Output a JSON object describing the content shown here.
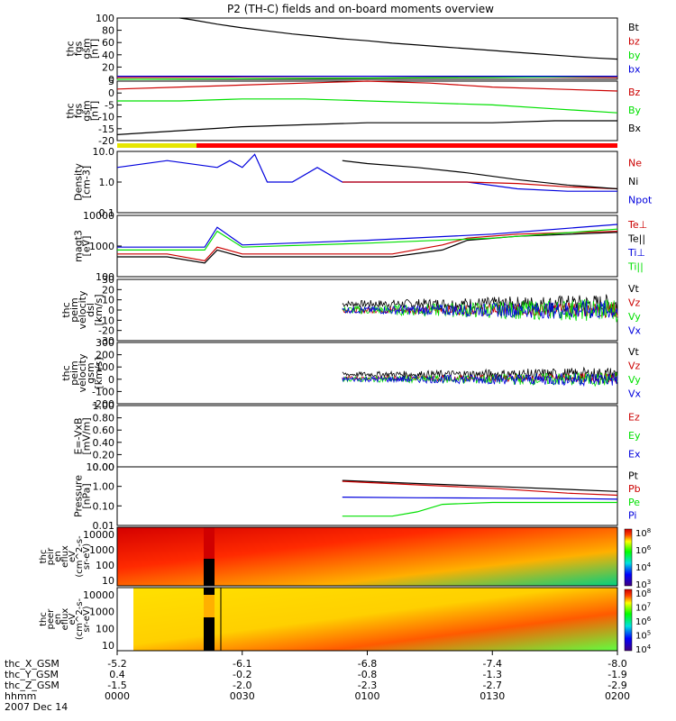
{
  "title": "P2 (TH-C) fields and on-board moments overview",
  "colors": {
    "black": "#000000",
    "red": "#cc0000",
    "green": "#00e000",
    "blue": "#0000dd",
    "yellow": "#e6e600",
    "bar_red": "#ff0000"
  },
  "chart_data": {
    "type": "line",
    "x": {
      "label": "hhmm",
      "ticks": [
        "0000",
        "0030",
        "0100",
        "0130",
        "0200"
      ],
      "range_hhmm": [
        "0000",
        "0200"
      ],
      "date": "2007 Dec 14"
    },
    "orbit_rows": [
      {
        "label": "thc_X_GSM",
        "values": [
          "-5.2",
          "-6.1",
          "-6.8",
          "-7.4",
          "-8.0"
        ]
      },
      {
        "label": "thc_Y_GSM",
        "values": [
          "0.4",
          "-0.2",
          "-0.8",
          "-1.3",
          "-1.9"
        ]
      },
      {
        "label": "thc_Z_GSM",
        "values": [
          "-1.5",
          "-2.0",
          "-2.3",
          "-2.7",
          "-2.9"
        ]
      }
    ],
    "panels": [
      {
        "id": "fgs_gsm_mag",
        "ylabel": [
          "thc",
          "fgs",
          "gsm",
          "[nT]"
        ],
        "ylim": [
          0,
          100
        ],
        "ticks": [
          "100",
          "80",
          "60",
          "40",
          "20",
          "0"
        ],
        "legend": [
          {
            "name": "Bt",
            "color": "#000000"
          },
          {
            "name": "bz",
            "color": "#cc0000"
          },
          {
            "name": "by",
            "color": "#00e000"
          },
          {
            "name": "bx",
            "color": "#0000dd"
          }
        ],
        "series": [
          {
            "name": "Bt",
            "color": "#000000",
            "x": [
              0.25,
              0.3,
              0.4,
              0.5,
              0.6,
              0.7,
              0.8,
              0.9,
              1.0,
              1.1,
              1.2,
              1.3,
              1.4,
              1.5,
              1.6,
              1.7,
              1.8,
              1.9,
              2.0
            ],
            "y": [
              100,
              97,
              90,
              84,
              79,
              74,
              70,
              66,
              63,
              59,
              56,
              53,
              50,
              47,
              44,
              41,
              38,
              35,
              33
            ]
          },
          {
            "name": "bz",
            "color": "#cc0000",
            "x": [
              0,
              0.5,
              1.0,
              1.5,
              2.0
            ],
            "y": [
              3,
              4,
              5,
              4,
              3
            ]
          },
          {
            "name": "by",
            "color": "#00e000",
            "x": [
              0,
              0.5,
              1.0,
              1.5,
              2.0
            ],
            "y": [
              0,
              1,
              2,
              3,
              5
            ]
          },
          {
            "name": "bx",
            "color": "#0000dd",
            "x": [
              0,
              0.5,
              1.0,
              1.5,
              2.0
            ],
            "y": [
              5,
              5,
              5,
              5,
              5
            ]
          }
        ]
      },
      {
        "id": "fgs_gsm_components",
        "ylabel": [
          "thc",
          "fgs",
          "gsm",
          "[nT]"
        ],
        "ylim": [
          -25,
          5
        ],
        "ticks": [
          "5",
          "0",
          "-5",
          "-10",
          "-15",
          "-20"
        ],
        "legend": [
          {
            "name": "Bz",
            "color": "#cc0000"
          },
          {
            "name": "By",
            "color": "#00e000"
          },
          {
            "name": "Bx",
            "color": "#000000"
          }
        ],
        "series": [
          {
            "name": "Bz",
            "color": "#cc0000",
            "x": [
              0,
              0.25,
              0.5,
              0.75,
              1.0,
              1.25,
              1.5,
              1.75,
              2.0
            ],
            "y": [
              1,
              2,
              3,
              4,
              5,
              4,
              2,
              1,
              0
            ]
          },
          {
            "name": "By",
            "color": "#00e000",
            "x": [
              0,
              0.25,
              0.5,
              0.75,
              1.0,
              1.25,
              1.5,
              1.75,
              2.0
            ],
            "y": [
              -5,
              -5,
              -4,
              -4,
              -5,
              -6,
              -7,
              -9,
              -11
            ]
          },
          {
            "name": "Bx",
            "color": "#000000",
            "x": [
              0,
              0.25,
              0.5,
              0.75,
              1.0,
              1.25,
              1.5,
              1.75,
              2.0
            ],
            "y": [
              -22,
              -20,
              -18,
              -17,
              -16,
              -16,
              -16,
              -15,
              -15
            ]
          }
        ]
      },
      {
        "id": "density",
        "ylabel": [
          "Density",
          "[cm-3]"
        ],
        "log": true,
        "ylim": [
          0.1,
          10
        ],
        "ticks": [
          "10.0",
          "1.0",
          "0.1"
        ],
        "legend": [
          {
            "name": "Ne",
            "color": "#cc0000"
          },
          {
            "name": "Ni",
            "color": "#000000"
          },
          {
            "name": "Npot",
            "color": "#0000dd"
          }
        ],
        "series": [
          {
            "name": "Npot",
            "color": "#0000dd",
            "x": [
              0,
              0.2,
              0.4,
              0.45,
              0.5,
              0.55,
              0.6,
              0.7,
              0.8,
              0.9,
              1.0,
              1.2,
              1.4,
              1.6,
              1.8,
              2.0
            ],
            "y": [
              3,
              5,
              3,
              5,
              3,
              8,
              1,
              1,
              3,
              1,
              1,
              1,
              1,
              0.6,
              0.5,
              0.5
            ]
          },
          {
            "name": "Ne",
            "color": "#cc0000",
            "x": [
              0.9,
              1.0,
              1.2,
              1.4,
              1.6,
              1.8,
              2.0
            ],
            "y": [
              1,
              1,
              1,
              1,
              0.9,
              0.7,
              0.6
            ]
          },
          {
            "name": "Ni",
            "color": "#000000",
            "x": [
              0.9,
              1.0,
              1.2,
              1.4,
              1.6,
              1.8,
              2.0
            ],
            "y": [
              5,
              4,
              3,
              2,
              1.2,
              0.8,
              0.6
            ]
          }
        ]
      },
      {
        "id": "temperature",
        "ylabel": [
          "magt3",
          "[eV]"
        ],
        "log": true,
        "ylim": [
          20,
          10000
        ],
        "ticks": [
          "10000",
          "1000",
          "100"
        ],
        "legend": [
          {
            "name": "Te⊥",
            "color": "#cc0000"
          },
          {
            "name": "Te||",
            "color": "#000000"
          },
          {
            "name": "Ti⊥",
            "color": "#0000dd"
          },
          {
            "name": "Ti||",
            "color": "#00e000"
          }
        ],
        "series": [
          {
            "name": "Te⊥",
            "color": "#cc0000",
            "x": [
              0,
              0.2,
              0.35,
              0.4,
              0.5,
              0.9,
              1.1,
              1.3,
              1.4,
              1.6,
              2.0
            ],
            "y": [
              200,
              200,
              100,
              400,
              200,
              200,
              200,
              500,
              1000,
              1500,
              2000
            ]
          },
          {
            "name": "Te||",
            "color": "#000000",
            "x": [
              0,
              0.2,
              0.35,
              0.4,
              0.5,
              0.9,
              1.1,
              1.3,
              1.4,
              1.6,
              2.0
            ],
            "y": [
              150,
              150,
              80,
              300,
              150,
              150,
              150,
              300,
              800,
              1200,
              1800
            ]
          },
          {
            "name": "Ti⊥",
            "color": "#0000dd",
            "x": [
              0,
              0.35,
              0.4,
              0.5,
              1.0,
              1.5,
              2.0
            ],
            "y": [
              400,
              400,
              3000,
              500,
              800,
              1500,
              4000
            ]
          },
          {
            "name": "Ti||",
            "color": "#00e000",
            "x": [
              0,
              0.35,
              0.4,
              0.5,
              1.0,
              1.5,
              2.0
            ],
            "y": [
              300,
              300,
              2000,
              400,
              600,
              1000,
              2500
            ]
          }
        ]
      },
      {
        "id": "velocity_dsl",
        "ylabel": [
          "thc",
          "peim",
          "velocity",
          "dsl",
          "[km/s]"
        ],
        "ylim": [
          -30,
          30
        ],
        "ticks": [
          "30",
          "20",
          "10",
          "0",
          "-10",
          "-20",
          "-30"
        ],
        "legend": [
          {
            "name": "Vt",
            "color": "#000000"
          },
          {
            "name": "Vz",
            "color": "#cc0000"
          },
          {
            "name": "Vy",
            "color": "#00e000"
          },
          {
            "name": "Vx",
            "color": "#0000dd"
          }
        ],
        "noise_start": 0.9,
        "series": [
          {
            "name": "Vt",
            "color": "#000000",
            "level": 6,
            "spread": 10
          },
          {
            "name": "Vz",
            "color": "#cc0000",
            "level": 0,
            "spread": 8
          },
          {
            "name": "Vy",
            "color": "#00e000",
            "level": 0,
            "spread": 12
          },
          {
            "name": "Vx",
            "color": "#0000dd",
            "level": 0,
            "spread": 10
          }
        ]
      },
      {
        "id": "velocity_gsm",
        "ylabel": [
          "thc",
          "peim",
          "velocity",
          "gsm",
          "[km/s]"
        ],
        "ylim": [
          -200,
          300
        ],
        "ticks": [
          "300",
          "200",
          "100",
          "0",
          "-100",
          "-200"
        ],
        "legend": [
          {
            "name": "Vt",
            "color": "#000000"
          },
          {
            "name": "Vz",
            "color": "#cc0000"
          },
          {
            "name": "Vy",
            "color": "#00e000"
          },
          {
            "name": "Vx",
            "color": "#0000dd"
          }
        ],
        "noise_start": 0.9,
        "series": [
          {
            "name": "Vt",
            "color": "#000000",
            "level": 40,
            "spread": 60
          },
          {
            "name": "Vz",
            "color": "#cc0000",
            "level": 10,
            "spread": 40
          },
          {
            "name": "Vy",
            "color": "#00e000",
            "level": 0,
            "spread": 60
          },
          {
            "name": "Vx",
            "color": "#0000dd",
            "level": 0,
            "spread": 60
          }
        ]
      },
      {
        "id": "e_field",
        "ylabel": [
          "E=-VxB",
          "[mV/m]"
        ],
        "ylim": [
          0,
          1
        ],
        "ticks": [
          "1.00",
          "0.80",
          "0.60",
          "0.40",
          "0.20",
          "0.00"
        ],
        "legend": [
          {
            "name": "Ez",
            "color": "#cc0000"
          },
          {
            "name": "Ey",
            "color": "#00e000"
          },
          {
            "name": "Ex",
            "color": "#0000dd"
          }
        ],
        "series": []
      },
      {
        "id": "pressure",
        "ylabel": [
          "Pressure",
          "[nPa]"
        ],
        "log": true,
        "ylim": [
          0.01,
          10
        ],
        "ticks": [
          "10.00",
          "1.00",
          "0.10",
          "0.01"
        ],
        "legend": [
          {
            "name": "Pt",
            "color": "#000000"
          },
          {
            "name": "Pb",
            "color": "#cc0000"
          },
          {
            "name": "Pe",
            "color": "#00e000"
          },
          {
            "name": "Pi",
            "color": "#0000dd"
          }
        ],
        "series": [
          {
            "name": "Pt",
            "color": "#000000",
            "x": [
              0.9,
              1.2,
              1.5,
              1.8,
              2.0
            ],
            "y": [
              2,
              1.4,
              1.0,
              0.7,
              0.55
            ]
          },
          {
            "name": "Pb",
            "color": "#cc0000",
            "x": [
              0.9,
              1.2,
              1.5,
              1.8,
              2.0
            ],
            "y": [
              1.8,
              1.2,
              0.8,
              0.45,
              0.35
            ]
          },
          {
            "name": "Pi",
            "color": "#0000dd",
            "x": [
              0.9,
              1.2,
              1.5,
              1.8,
              2.0
            ],
            "y": [
              0.28,
              0.26,
              0.25,
              0.24,
              0.22
            ]
          },
          {
            "name": "Pe",
            "color": "#00e000",
            "x": [
              0.9,
              1.1,
              1.2,
              1.3,
              1.5,
              2.0
            ],
            "y": [
              0.03,
              0.03,
              0.05,
              0.12,
              0.15,
              0.15
            ]
          }
        ]
      }
    ],
    "spectrograms": [
      {
        "id": "peir_en_eflux",
        "ylabel": [
          "thc",
          "peir",
          "en",
          "eflux",
          "eV",
          "(cm^2-s-",
          "sr-eV)"
        ],
        "ticks": [
          "10000",
          "1000",
          "100",
          "10"
        ],
        "colorbar_ticks": [
          "10^8",
          "10^6",
          "10^4",
          "10^3"
        ]
      },
      {
        "id": "peer_en_eflux",
        "ylabel": [
          "thc",
          "peer",
          "en",
          "eflux",
          "eV",
          "(cm^2-s-",
          "sr-eV)"
        ],
        "ticks": [
          "10000",
          "1000",
          "100",
          "10"
        ],
        "colorbar_ticks": [
          "10^8",
          "10^7",
          "10^6",
          "10^5",
          "10^4"
        ]
      }
    ],
    "status_bar": {
      "yellow_until_hhmm": "0025"
    }
  }
}
